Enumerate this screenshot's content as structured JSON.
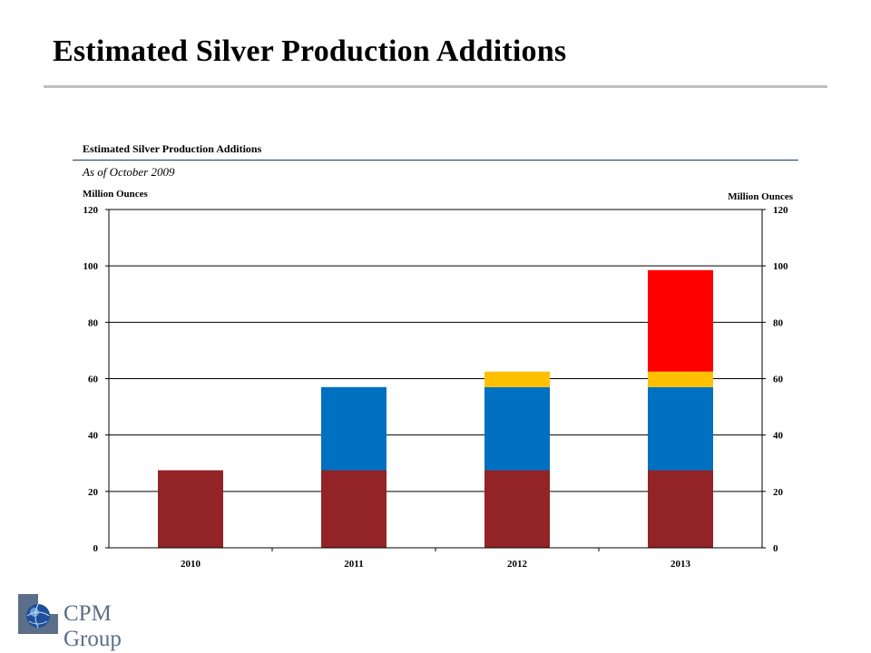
{
  "slide": {
    "title": "Estimated Silver Production Additions"
  },
  "chart_data": {
    "type": "bar",
    "stacked": true,
    "title": "Estimated Silver Production Additions",
    "subtitle": "As of October 2009",
    "ylabel_left": "Million Ounces",
    "ylabel_right": "Million Ounces",
    "ylim": [
      0,
      120
    ],
    "yticks": [
      "0",
      "20",
      "40",
      "60",
      "80",
      "100",
      "120"
    ],
    "grid": true,
    "legend": "none",
    "categories": [
      "2010",
      "2011",
      "2012",
      "2013"
    ],
    "series": [
      {
        "color": "#922326",
        "values": [
          27.5,
          27.5,
          27.5,
          27.5
        ]
      },
      {
        "color": "#0070c0",
        "values": [
          0,
          29.5,
          29.5,
          29.5
        ]
      },
      {
        "color": "#ffc000",
        "values": [
          0,
          0,
          5.5,
          5.5
        ]
      },
      {
        "color": "#ff0000",
        "values": [
          0,
          0,
          0,
          36
        ]
      }
    ]
  },
  "logo": {
    "text": "CPM Group",
    "icon": "globe-icon"
  }
}
